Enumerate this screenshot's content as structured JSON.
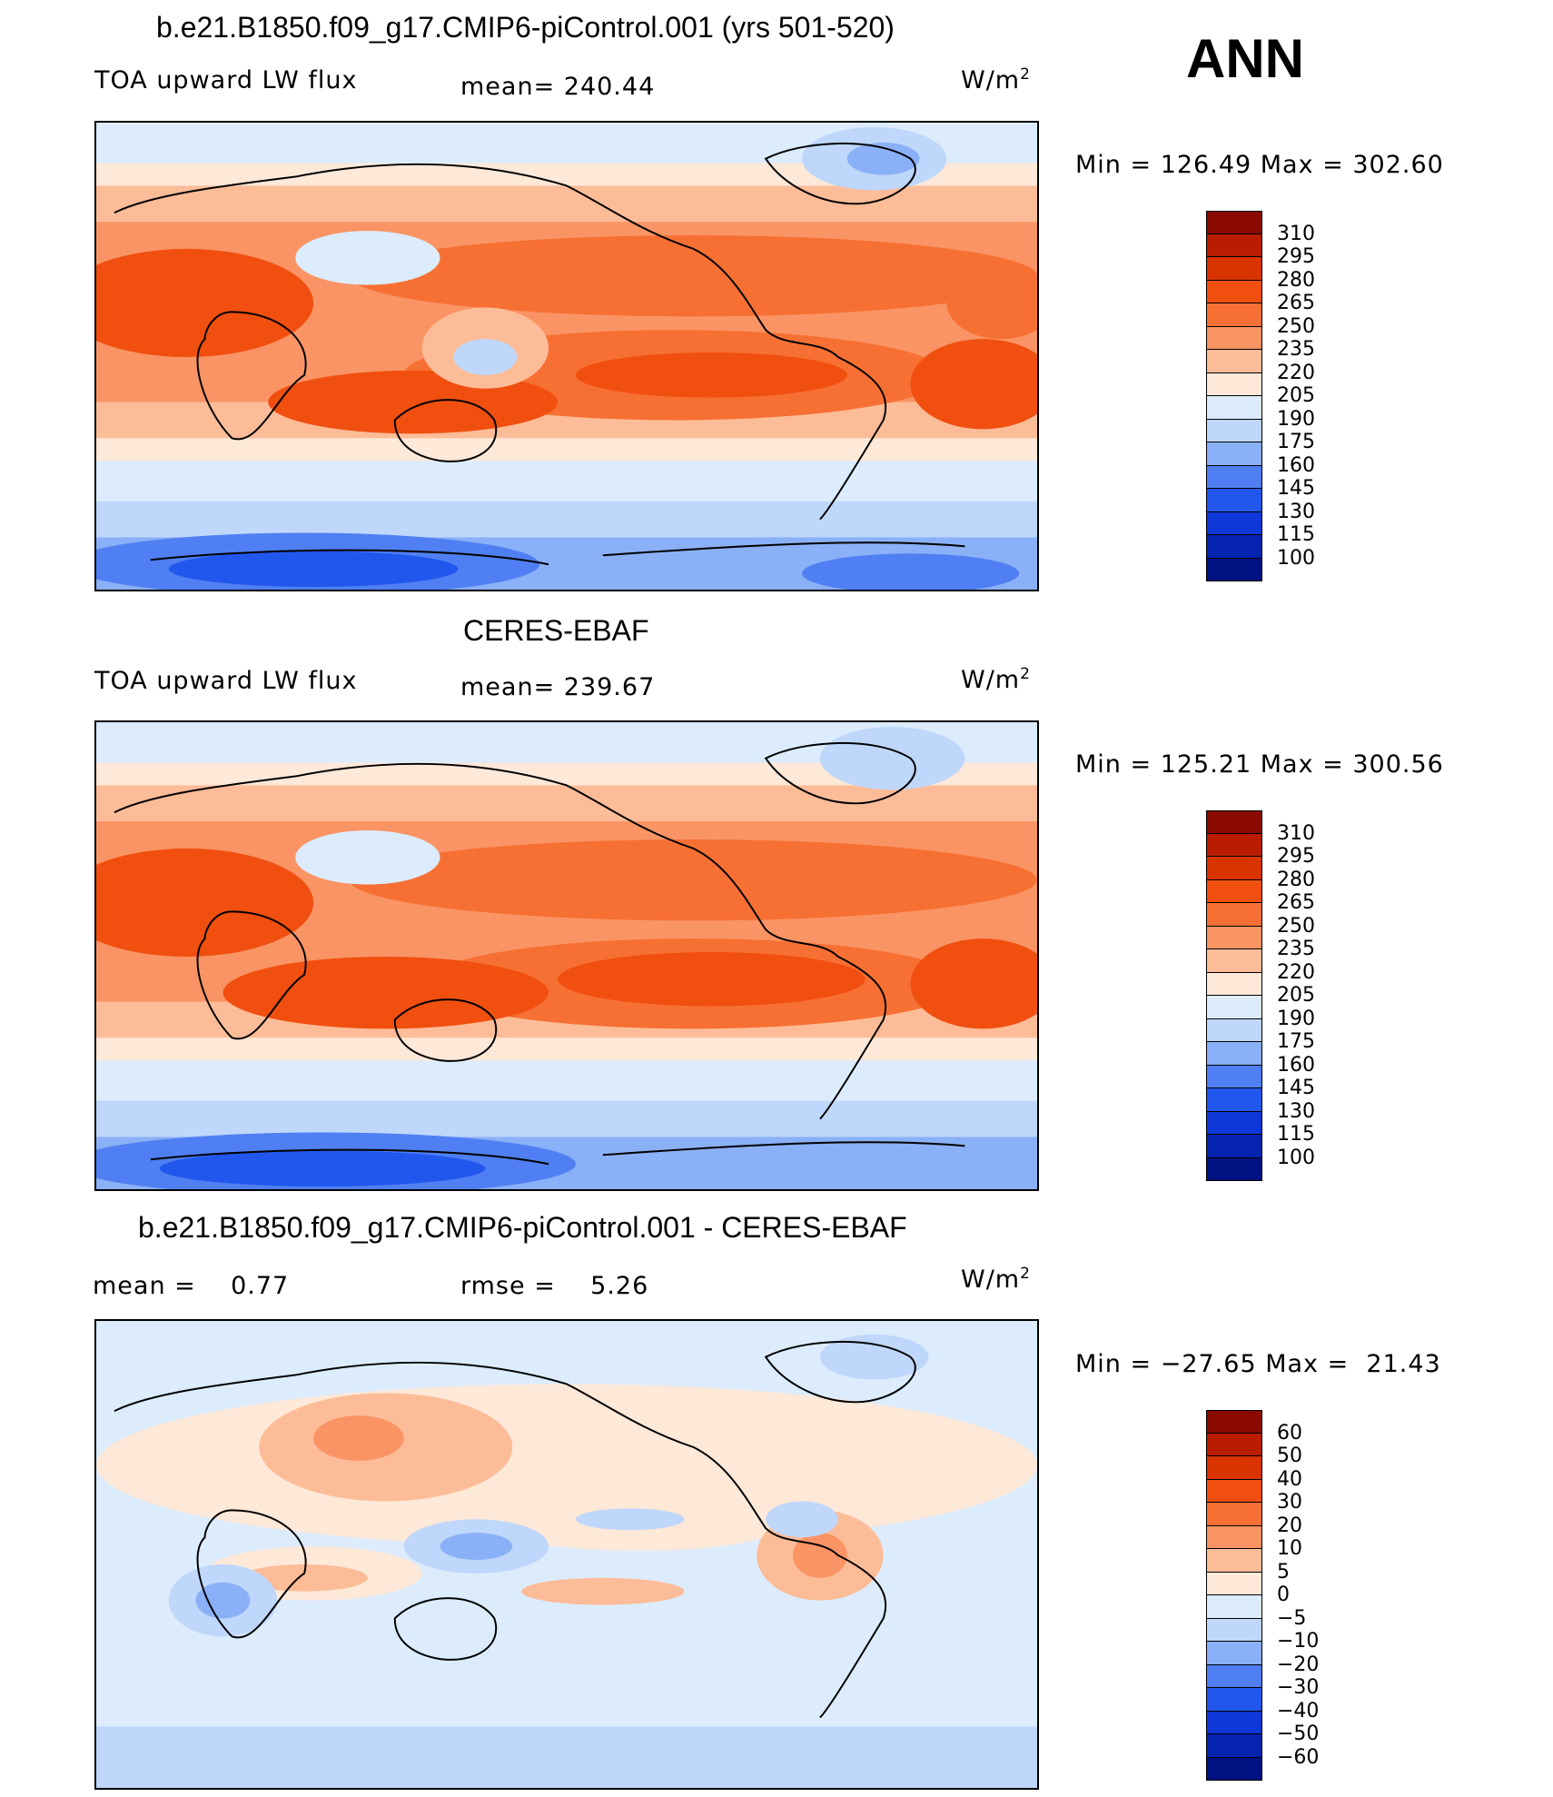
{
  "season": "ANN",
  "panels": [
    {
      "title": "b.e21.B1850.f09_g17.CMIP6-piControl.001 (yrs 501-520)",
      "left_label": "TOA upward LW flux",
      "center_label": "mean= 240.44",
      "units": "W/m",
      "units_sup": "2",
      "minmax": "Min = 126.49 Max = 302.60",
      "colorbar": {
        "levels": [
          "310",
          "295",
          "280",
          "265",
          "250",
          "235",
          "220",
          "205",
          "190",
          "175",
          "160",
          "145",
          "130",
          "115",
          "100"
        ],
        "colors": [
          "#8a0a00",
          "#b91c00",
          "#d93300",
          "#f04f10",
          "#f77033",
          "#fa9464",
          "#fcbc98",
          "#fee8d8",
          "#dcecfc",
          "#bfd7fb",
          "#8ab0f7",
          "#4f7ff2",
          "#2257ee",
          "#0e38d8",
          "#0424b0",
          "#001181"
        ]
      }
    },
    {
      "title": "CERES-EBAF",
      "left_label": "TOA upward LW flux",
      "center_label": "mean= 239.67",
      "units": "W/m",
      "units_sup": "2",
      "minmax": "Min = 125.21 Max = 300.56",
      "colorbar": {
        "levels": [
          "310",
          "295",
          "280",
          "265",
          "250",
          "235",
          "220",
          "205",
          "190",
          "175",
          "160",
          "145",
          "130",
          "115",
          "100"
        ],
        "colors": [
          "#8a0a00",
          "#b91c00",
          "#d93300",
          "#f04f10",
          "#f77033",
          "#fa9464",
          "#fcbc98",
          "#fee8d8",
          "#dcecfc",
          "#bfd7fb",
          "#8ab0f7",
          "#4f7ff2",
          "#2257ee",
          "#0e38d8",
          "#0424b0",
          "#001181"
        ]
      }
    },
    {
      "title": "b.e21.B1850.f09_g17.CMIP6-piControl.001 - CERES-EBAF",
      "left_label": "mean =    0.77",
      "center_label": "rmse =    5.26",
      "units": "W/m",
      "units_sup": "2",
      "minmax": "Min = −27.65 Max =  21.43",
      "colorbar": {
        "levels": [
          "60",
          "50",
          "40",
          "30",
          "20",
          "10",
          "5",
          "0",
          "−5",
          "−10",
          "−20",
          "−30",
          "−40",
          "−50",
          "−60"
        ],
        "colors": [
          "#8a0a00",
          "#b91c00",
          "#d93300",
          "#f04f10",
          "#f77033",
          "#fa9464",
          "#fcbc98",
          "#fee8d8",
          "#dcecfc",
          "#bfd7fb",
          "#8ab0f7",
          "#4f7ff2",
          "#2257ee",
          "#0e38d8",
          "#0424b0",
          "#001181"
        ]
      }
    }
  ]
}
